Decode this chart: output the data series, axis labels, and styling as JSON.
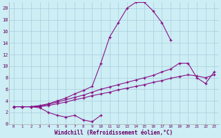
{
  "background_color": "#cceef4",
  "grid_color": "#aaccdd",
  "line_color": "#881188",
  "xlabel": "Windchill (Refroidissement éolien,°C)",
  "xlim": [
    -0.5,
    23.5
  ],
  "ylim": [
    0,
    21
  ],
  "yticks": [
    0,
    2,
    4,
    6,
    8,
    10,
    12,
    14,
    16,
    18,
    20
  ],
  "xticks": [
    0,
    1,
    2,
    3,
    4,
    5,
    6,
    7,
    8,
    9,
    10,
    11,
    12,
    13,
    14,
    15,
    16,
    17,
    18,
    19,
    20,
    21,
    22,
    23
  ],
  "series": [
    {
      "x": [
        0,
        1,
        2,
        3,
        4,
        5,
        6,
        7,
        8,
        9,
        10
      ],
      "y": [
        3.0,
        3.0,
        3.0,
        2.8,
        2.0,
        1.5,
        1.2,
        1.5,
        0.7,
        0.4,
        1.5
      ]
    },
    {
      "x": [
        0,
        1,
        2,
        3,
        4,
        5,
        6,
        7,
        8,
        9,
        10,
        11,
        12,
        13,
        14,
        15,
        16,
        17,
        18
      ],
      "y": [
        3.0,
        3.0,
        3.0,
        3.2,
        3.5,
        4.0,
        4.5,
        5.2,
        5.8,
        6.5,
        10.5,
        15.0,
        17.5,
        20.0,
        21.0,
        21.0,
        19.5,
        17.5,
        14.5
      ]
    },
    {
      "x": [
        0,
        1,
        2,
        3,
        4,
        5,
        6,
        7,
        8,
        9,
        10,
        11,
        12,
        13,
        14,
        15,
        16,
        17,
        18,
        19,
        20,
        21,
        22,
        23
      ],
      "y": [
        3.0,
        3.0,
        3.0,
        3.1,
        3.4,
        3.8,
        4.2,
        4.6,
        5.0,
        5.5,
        6.0,
        6.4,
        6.8,
        7.2,
        7.6,
        8.0,
        8.4,
        9.0,
        9.5,
        10.5,
        10.5,
        8.0,
        7.0,
        9.0
      ]
    },
    {
      "x": [
        0,
        1,
        2,
        3,
        4,
        5,
        6,
        7,
        8,
        9,
        10,
        11,
        12,
        13,
        14,
        15,
        16,
        17,
        18,
        19,
        20,
        21,
        22,
        23
      ],
      "y": [
        3.0,
        3.0,
        3.0,
        3.0,
        3.2,
        3.5,
        3.8,
        4.2,
        4.5,
        4.9,
        5.2,
        5.5,
        5.9,
        6.2,
        6.5,
        6.8,
        7.2,
        7.5,
        7.9,
        8.2,
        8.5,
        8.3,
        8.0,
        8.5
      ]
    }
  ]
}
